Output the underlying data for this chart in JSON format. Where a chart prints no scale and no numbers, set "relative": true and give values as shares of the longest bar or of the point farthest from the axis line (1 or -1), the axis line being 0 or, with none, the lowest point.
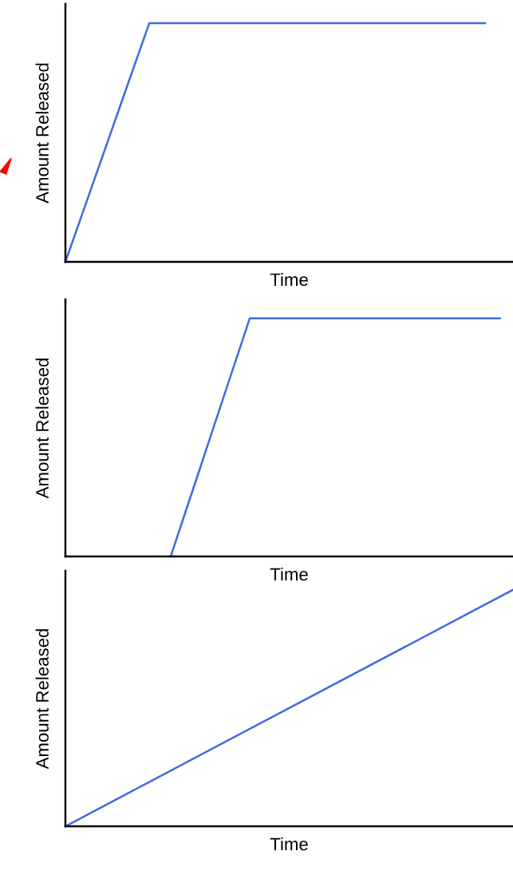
{
  "chart_data": [
    {
      "type": "line",
      "relative": true,
      "xlabel": "Time",
      "ylabel": "Amount Released",
      "categories": [
        null,
        null,
        null,
        null,
        null,
        null,
        null,
        null,
        null,
        null,
        null,
        null,
        null,
        null,
        null,
        null,
        null
      ],
      "series": [
        {
          "color": "#4169e1",
          "values": [
            0,
            0.333,
            0.667,
            1,
            1,
            1,
            1,
            1,
            1,
            1,
            1,
            1,
            1,
            1,
            1,
            1,
            null
          ]
        }
      ]
    },
    {
      "type": "line",
      "relative": true,
      "xlabel": "Time",
      "ylabel": "Amount Released",
      "categories": [
        null,
        null,
        null,
        null,
        null,
        null,
        null,
        null,
        null,
        null,
        null,
        null,
        null,
        null,
        null,
        null,
        null,
        null,
        null,
        null,
        null,
        null,
        null,
        null,
        null,
        null,
        null,
        null,
        null,
        null,
        null,
        null,
        null,
        null,
        null
      ],
      "series": [
        {
          "color": "#4169e1",
          "values": [
            null,
            null,
            null,
            null,
            null,
            null,
            null,
            null,
            0,
            0.167,
            0.333,
            0.5,
            0.667,
            0.833,
            1,
            1,
            1,
            1,
            1,
            1,
            1,
            1,
            1,
            1,
            1,
            1,
            1,
            1,
            1,
            1,
            1,
            1,
            1,
            1,
            null
          ]
        }
      ]
    },
    {
      "type": "line",
      "relative": true,
      "xlabel": "Time",
      "ylabel": "Amount Released",
      "categories": [
        null,
        null
      ],
      "series": [
        {
          "color": "#4169e1",
          "values": [
            0,
            1
          ]
        }
      ]
    }
  ]
}
